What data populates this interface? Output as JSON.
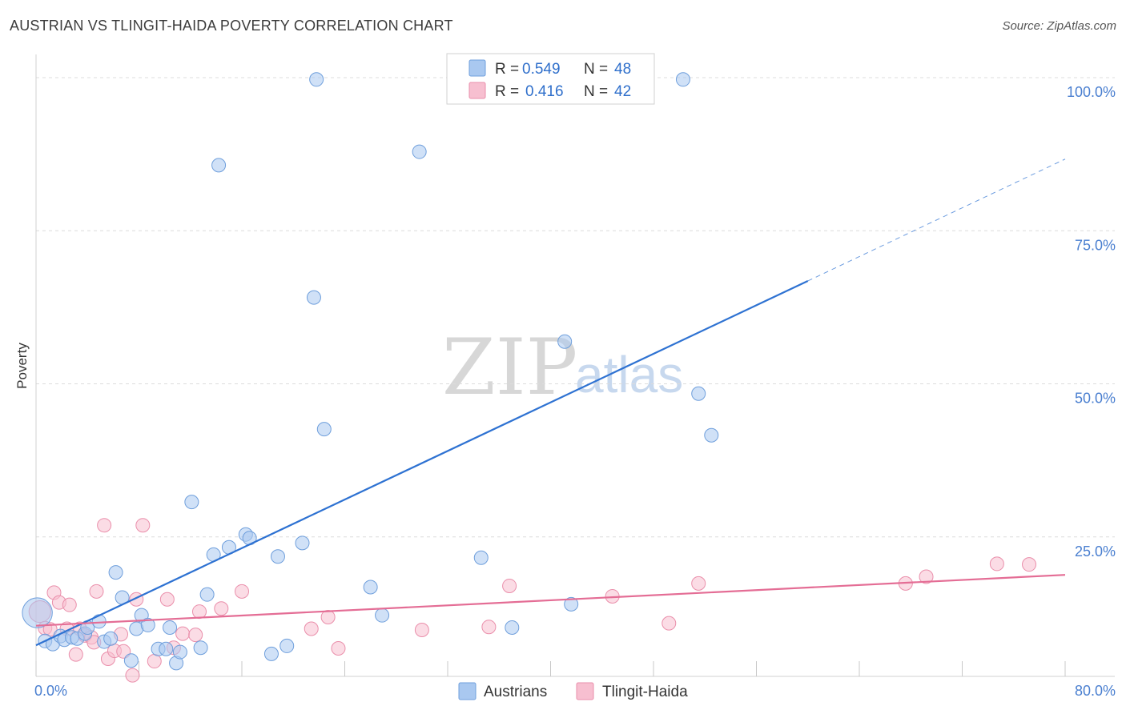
{
  "title": "AUSTRIAN VS TLINGIT-HAIDA POVERTY CORRELATION CHART",
  "source": "Source: ZipAtlas.com",
  "watermark": {
    "zip": "ZIP",
    "atlas": "atlas"
  },
  "colors": {
    "austrians_fill": "#a9c8f0",
    "austrians_stroke": "#6f9fdc",
    "austrians_line": "#2e72d2",
    "tlingit_fill": "#f7bfd0",
    "tlingit_stroke": "#ea8fab",
    "tlingit_line": "#e46d95",
    "grid": "#dcdcdc",
    "axis_label": "#4a7fd0"
  },
  "legend": {
    "r_label": "R =",
    "n_label": "N =",
    "austrians": {
      "r": "0.549",
      "n": "48"
    },
    "tlingit": {
      "r": "0.416",
      "n": "42"
    }
  },
  "chart_data": {
    "type": "scatter",
    "title": "AUSTRIAN VS TLINGIT-HAIDA POVERTY CORRELATION CHART",
    "xlabel": "",
    "ylabel": "Poverty",
    "xlim": [
      0,
      80
    ],
    "ylim": [
      0,
      100
    ],
    "x_tick_labels": [
      "0.0%",
      "80.0%"
    ],
    "y_tick_labels": [
      "25.0%",
      "50.0%",
      "75.0%",
      "100.0%"
    ],
    "y_ticks": [
      25,
      50,
      75,
      100
    ],
    "legend_position": "top-center",
    "series": [
      {
        "name": "Austrians",
        "r": 0.549,
        "n": 48,
        "trend": {
          "x0": 0,
          "y0": 7.3,
          "x1": 60,
          "y1": 66.8,
          "dash_to_x": 80,
          "dash_to_y": 86.7
        },
        "points": [
          [
            0.1,
            12.6,
            2.2
          ],
          [
            0.7,
            8.0,
            1
          ],
          [
            1.3,
            7.5,
            1
          ],
          [
            1.9,
            8.8,
            1
          ],
          [
            2.2,
            8.2,
            1
          ],
          [
            2.8,
            8.6,
            1
          ],
          [
            3.2,
            8.4,
            1
          ],
          [
            3.8,
            9.2,
            1
          ],
          [
            4.0,
            10.2,
            1
          ],
          [
            4.9,
            11.2,
            1
          ],
          [
            5.3,
            7.9,
            1
          ],
          [
            5.8,
            8.4,
            1
          ],
          [
            6.2,
            19.2,
            1
          ],
          [
            6.7,
            15.1,
            1
          ],
          [
            7.4,
            4.8,
            1
          ],
          [
            7.8,
            10.0,
            1
          ],
          [
            8.2,
            12.2,
            1
          ],
          [
            8.7,
            10.6,
            1
          ],
          [
            9.5,
            6.7,
            1
          ],
          [
            10.1,
            6.7,
            1
          ],
          [
            10.4,
            10.2,
            1
          ],
          [
            10.9,
            4.4,
            1
          ],
          [
            11.2,
            6.2,
            1
          ],
          [
            12.1,
            30.7,
            1
          ],
          [
            12.8,
            6.9,
            1
          ],
          [
            13.3,
            15.6,
            1
          ],
          [
            13.8,
            22.1,
            1
          ],
          [
            14.2,
            85.7,
            1
          ],
          [
            15.0,
            23.3,
            1
          ],
          [
            16.3,
            25.4,
            1
          ],
          [
            16.6,
            24.8,
            1
          ],
          [
            18.3,
            5.9,
            1
          ],
          [
            18.8,
            21.8,
            1
          ],
          [
            19.5,
            7.2,
            1
          ],
          [
            20.7,
            24.0,
            1
          ],
          [
            21.6,
            64.1,
            1
          ],
          [
            21.8,
            99.7,
            1
          ],
          [
            22.4,
            42.6,
            1
          ],
          [
            26.0,
            16.8,
            1
          ],
          [
            26.9,
            12.2,
            1
          ],
          [
            29.8,
            87.9,
            1
          ],
          [
            34.6,
            21.6,
            1
          ],
          [
            37.0,
            10.2,
            1
          ],
          [
            41.1,
            56.9,
            1
          ],
          [
            41.6,
            14.0,
            1
          ],
          [
            50.3,
            99.7,
            1
          ],
          [
            51.5,
            48.4,
            1
          ],
          [
            52.5,
            41.6,
            1
          ]
        ]
      },
      {
        "name": "Tlingit-Haida",
        "r": 0.416,
        "n": 42,
        "trend": {
          "x0": 0,
          "y0": 10.5,
          "x1": 80,
          "y1": 18.8
        },
        "points": [
          [
            0.3,
            12.8,
            1.6
          ],
          [
            0.7,
            10.1,
            1
          ],
          [
            1.1,
            9.9,
            1
          ],
          [
            1.4,
            15.9,
            1
          ],
          [
            1.8,
            14.3,
            1
          ],
          [
            2.4,
            10.0,
            1
          ],
          [
            2.6,
            13.9,
            1
          ],
          [
            3.1,
            5.8,
            1
          ],
          [
            3.4,
            10.0,
            1
          ],
          [
            3.8,
            8.9,
            1
          ],
          [
            4.3,
            8.6,
            1
          ],
          [
            4.5,
            7.8,
            1
          ],
          [
            4.7,
            16.1,
            1
          ],
          [
            5.3,
            26.9,
            1
          ],
          [
            5.6,
            5.1,
            1
          ],
          [
            6.1,
            6.4,
            1
          ],
          [
            6.6,
            9.1,
            1
          ],
          [
            6.8,
            6.3,
            1
          ],
          [
            7.5,
            2.4,
            1
          ],
          [
            7.8,
            14.8,
            1
          ],
          [
            8.3,
            26.9,
            1
          ],
          [
            9.2,
            4.7,
            1
          ],
          [
            10.2,
            14.8,
            1
          ],
          [
            10.7,
            6.9,
            1
          ],
          [
            11.4,
            9.2,
            1
          ],
          [
            12.4,
            9.0,
            1
          ],
          [
            12.7,
            12.8,
            1
          ],
          [
            14.4,
            13.3,
            1
          ],
          [
            16.0,
            16.1,
            1
          ],
          [
            21.4,
            10.0,
            1
          ],
          [
            22.7,
            11.9,
            1
          ],
          [
            23.5,
            6.8,
            1
          ],
          [
            30.0,
            9.8,
            1
          ],
          [
            35.2,
            10.3,
            1
          ],
          [
            36.8,
            17.0,
            1
          ],
          [
            44.8,
            15.3,
            1
          ],
          [
            49.2,
            10.9,
            1
          ],
          [
            51.5,
            17.4,
            1
          ],
          [
            67.6,
            17.4,
            1
          ],
          [
            69.2,
            18.5,
            1
          ],
          [
            74.7,
            20.6,
            1
          ],
          [
            77.2,
            20.5,
            1
          ]
        ]
      }
    ]
  },
  "bottom_legend": [
    {
      "label": "Austrians"
    },
    {
      "label": "Tlingit-Haida"
    }
  ]
}
